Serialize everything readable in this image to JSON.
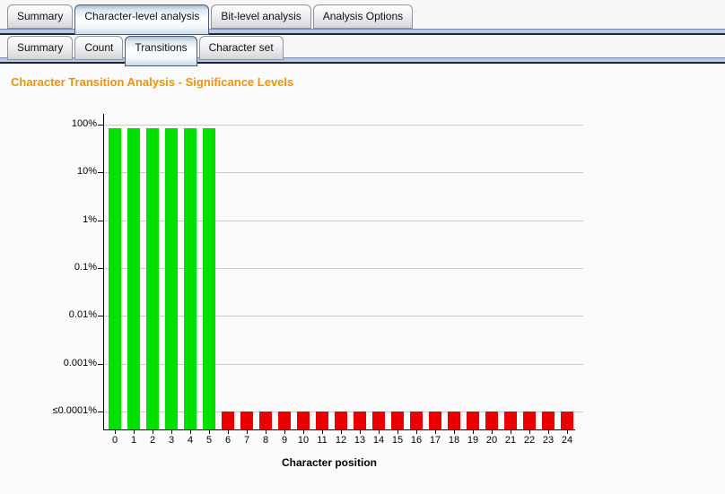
{
  "window": {
    "background": "#f7f7f8",
    "content_background": "#fbfbfc",
    "divider_band_color": "#b9c9e3",
    "divider_edge_color": "#1d2637"
  },
  "primary_tabs": {
    "items": [
      {
        "label": "Summary",
        "selected": false
      },
      {
        "label": "Character-level analysis",
        "selected": true
      },
      {
        "label": "Bit-level analysis",
        "selected": false
      },
      {
        "label": "Analysis Options",
        "selected": false
      }
    ]
  },
  "secondary_tabs": {
    "items": [
      {
        "label": "Summary",
        "selected": false
      },
      {
        "label": "Count",
        "selected": false
      },
      {
        "label": "Transitions",
        "selected": true
      },
      {
        "label": "Character set",
        "selected": false
      }
    ]
  },
  "page_title": {
    "text": "Character Transition Analysis - Significance Levels",
    "color": "#e8940f"
  },
  "chart_data": {
    "type": "bar",
    "title": "Character Transition Analysis - Significance Levels",
    "xlabel": "Character position",
    "ylabel": "",
    "y_scale": "log",
    "grid": true,
    "gridline_color": "#cccccc",
    "legend": "none",
    "y_axis": {
      "tick_labels": [
        "100%",
        "10%",
        "1%",
        "0.1%",
        "0.01%",
        "0.001%",
        "≤0.0001%"
      ],
      "tick_values_percent": [
        100,
        10,
        1,
        0.1,
        0.01,
        0.001,
        0.0001
      ],
      "floor_label": "≤0.0001%",
      "ylim_percent": [
        0.0001,
        100
      ]
    },
    "categories": [
      0,
      1,
      2,
      3,
      4,
      5,
      6,
      7,
      8,
      9,
      10,
      11,
      12,
      13,
      14,
      15,
      16,
      17,
      18,
      19,
      20,
      21,
      22,
      23,
      24
    ],
    "values_percent": [
      85,
      85,
      85,
      85,
      85,
      85,
      0.0001,
      0.0001,
      0.0001,
      0.0001,
      0.0001,
      0.0001,
      0.0001,
      0.0001,
      0.0001,
      0.0001,
      0.0001,
      0.0001,
      0.0001,
      0.0001,
      0.0001,
      0.0001,
      0.0001,
      0.0001,
      0.0001
    ],
    "significant": [
      true,
      true,
      true,
      true,
      true,
      true,
      false,
      false,
      false,
      false,
      false,
      false,
      false,
      false,
      false,
      false,
      false,
      false,
      false,
      false,
      false,
      false,
      false,
      false,
      false
    ],
    "series_colors": {
      "significant": "#00e000",
      "not_significant": "#e80000"
    }
  }
}
